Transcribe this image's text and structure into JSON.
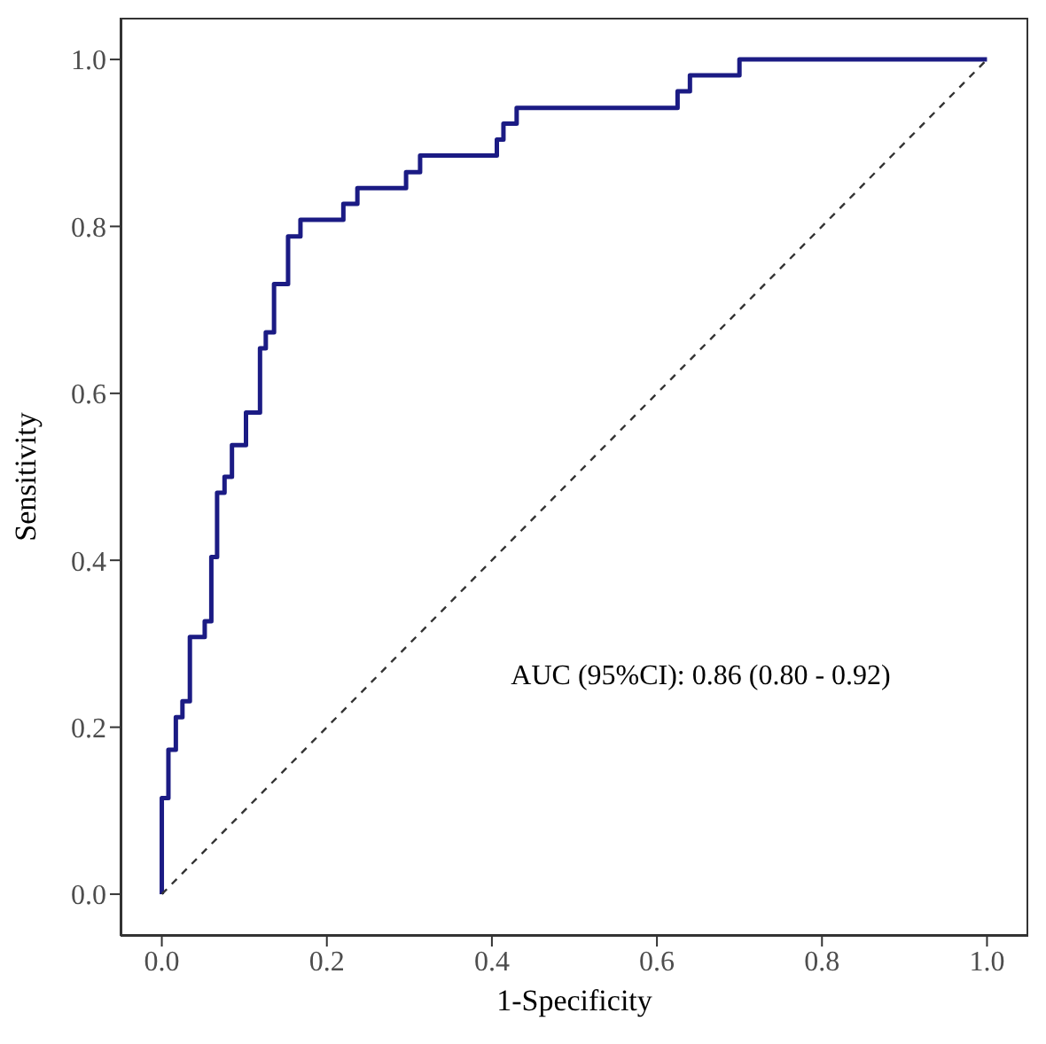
{
  "chart_data": {
    "type": "step",
    "xlabel": "1-Specificity",
    "ylabel": "Sensitivity",
    "annotations": [
      "AUC (95%CI): 0.86 (0.80 - 0.92)"
    ],
    "xlim": [
      -0.05,
      1.05
    ],
    "ylim": [
      -0.05,
      1.05
    ],
    "xticks": [
      {
        "value": 0,
        "label": "0.0"
      },
      {
        "value": 0.2,
        "label": "0.2"
      },
      {
        "value": 0.4,
        "label": "0.4"
      },
      {
        "value": 0.6,
        "label": "0.6"
      },
      {
        "value": 0.8,
        "label": "0.8"
      },
      {
        "value": 1,
        "label": "1.0"
      }
    ],
    "yticks": [
      {
        "value": 0,
        "label": "0.0"
      },
      {
        "value": 0.2,
        "label": "0.2"
      },
      {
        "value": 0.4,
        "label": "0.4"
      },
      {
        "value": 0.6,
        "label": "0.6"
      },
      {
        "value": 0.8,
        "label": "0.8"
      },
      {
        "value": 1,
        "label": "1.0"
      }
    ],
    "marker": "none",
    "series": [
      {
        "color": "#1b1b84",
        "line_style": "solid",
        "x": [
          0,
          0,
          0.008,
          0.017,
          0.025,
          0.034,
          0.052,
          0.06,
          0.067,
          0.076,
          0.085,
          0.102,
          0.119,
          0.126,
          0.136,
          0.153,
          0.168,
          0.22,
          0.237,
          0.296,
          0.313,
          0.406,
          0.414,
          0.43,
          0.625,
          0.64,
          0.7,
          1
        ],
        "values": [
          0,
          0.115,
          0.173,
          0.212,
          0.231,
          0.308,
          0.327,
          0.404,
          0.481,
          0.5,
          0.538,
          0.577,
          0.654,
          0.673,
          0.731,
          0.788,
          0.808,
          0.827,
          0.846,
          0.865,
          0.885,
          0.904,
          0.923,
          0.942,
          0.962,
          0.981,
          1,
          1
        ]
      },
      {
        "type": "line",
        "color": "#333333",
        "line_style": "dashed",
        "x": [
          0,
          1
        ],
        "values": [
          0,
          1
        ]
      }
    ]
  }
}
